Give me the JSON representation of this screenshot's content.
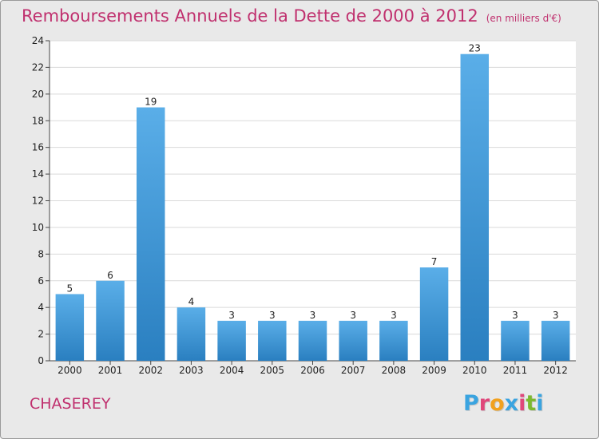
{
  "title": "Remboursements Annuels de la Dette de 2000 à 2012",
  "unit": "(en milliers d'€)",
  "commune": "CHASEREY",
  "logo": {
    "letters": [
      "P",
      "r",
      "o",
      "x",
      "i",
      "t",
      "i"
    ],
    "colors": [
      "#3aa4e0",
      "#e0467a",
      "#f1a11f",
      "#3aa4e0",
      "#e0467a",
      "#7cb82f",
      "#3aa4e0"
    ]
  },
  "colors": {
    "title": "#c0306e",
    "bar_top": "#5aaee8",
    "bar_bottom": "#2a7fc0",
    "plot_bg": "#ffffff",
    "grid": "#d9d9d9"
  },
  "chart_data": {
    "type": "bar",
    "categories": [
      "2000",
      "2001",
      "2002",
      "2003",
      "2004",
      "2005",
      "2006",
      "2007",
      "2008",
      "2009",
      "2010",
      "2011",
      "2012"
    ],
    "values": [
      5,
      6,
      19,
      4,
      3,
      3,
      3,
      3,
      3,
      7,
      23,
      3,
      3
    ],
    "ylim": [
      0,
      24
    ],
    "yticks": [
      0,
      2,
      4,
      6,
      8,
      10,
      12,
      14,
      16,
      18,
      20,
      22,
      24
    ],
    "grid": true,
    "xlabel": "",
    "ylabel": ""
  }
}
